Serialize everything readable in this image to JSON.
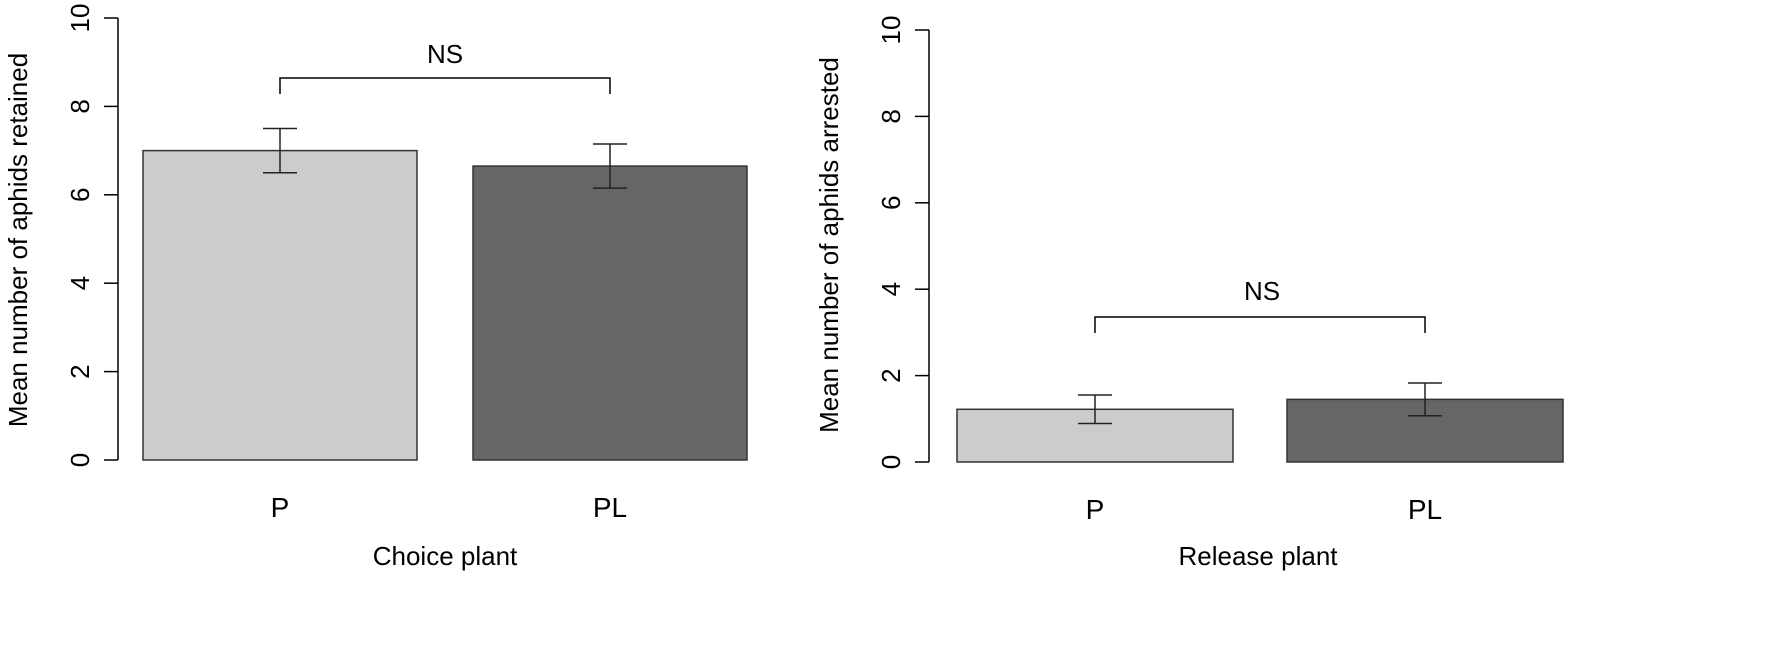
{
  "chart_data": [
    {
      "type": "bar",
      "categories": [
        "P",
        "PL"
      ],
      "values": [
        7.0,
        6.65
      ],
      "errors": [
        0.5,
        0.5
      ],
      "colors": [
        "#cccccc",
        "#666666"
      ],
      "xlabel": "Choice plant",
      "ylabel": "Mean number of aphids retained",
      "ylim": [
        0,
        10
      ],
      "yticks": [
        "0",
        "2",
        "4",
        "6",
        "8",
        "10"
      ],
      "annotation": "NS",
      "grid": false
    },
    {
      "type": "bar",
      "categories": [
        "P",
        "PL"
      ],
      "values": [
        1.22,
        1.45
      ],
      "errors": [
        0.33,
        0.38
      ],
      "colors": [
        "#cccccc",
        "#666666"
      ],
      "xlabel": "Release plant",
      "ylabel": "Mean number of aphids arrested",
      "ylim": [
        0,
        10
      ],
      "yticks": [
        "0",
        "2",
        "4",
        "6",
        "8",
        "10"
      ],
      "annotation": "NS",
      "grid": false
    }
  ]
}
